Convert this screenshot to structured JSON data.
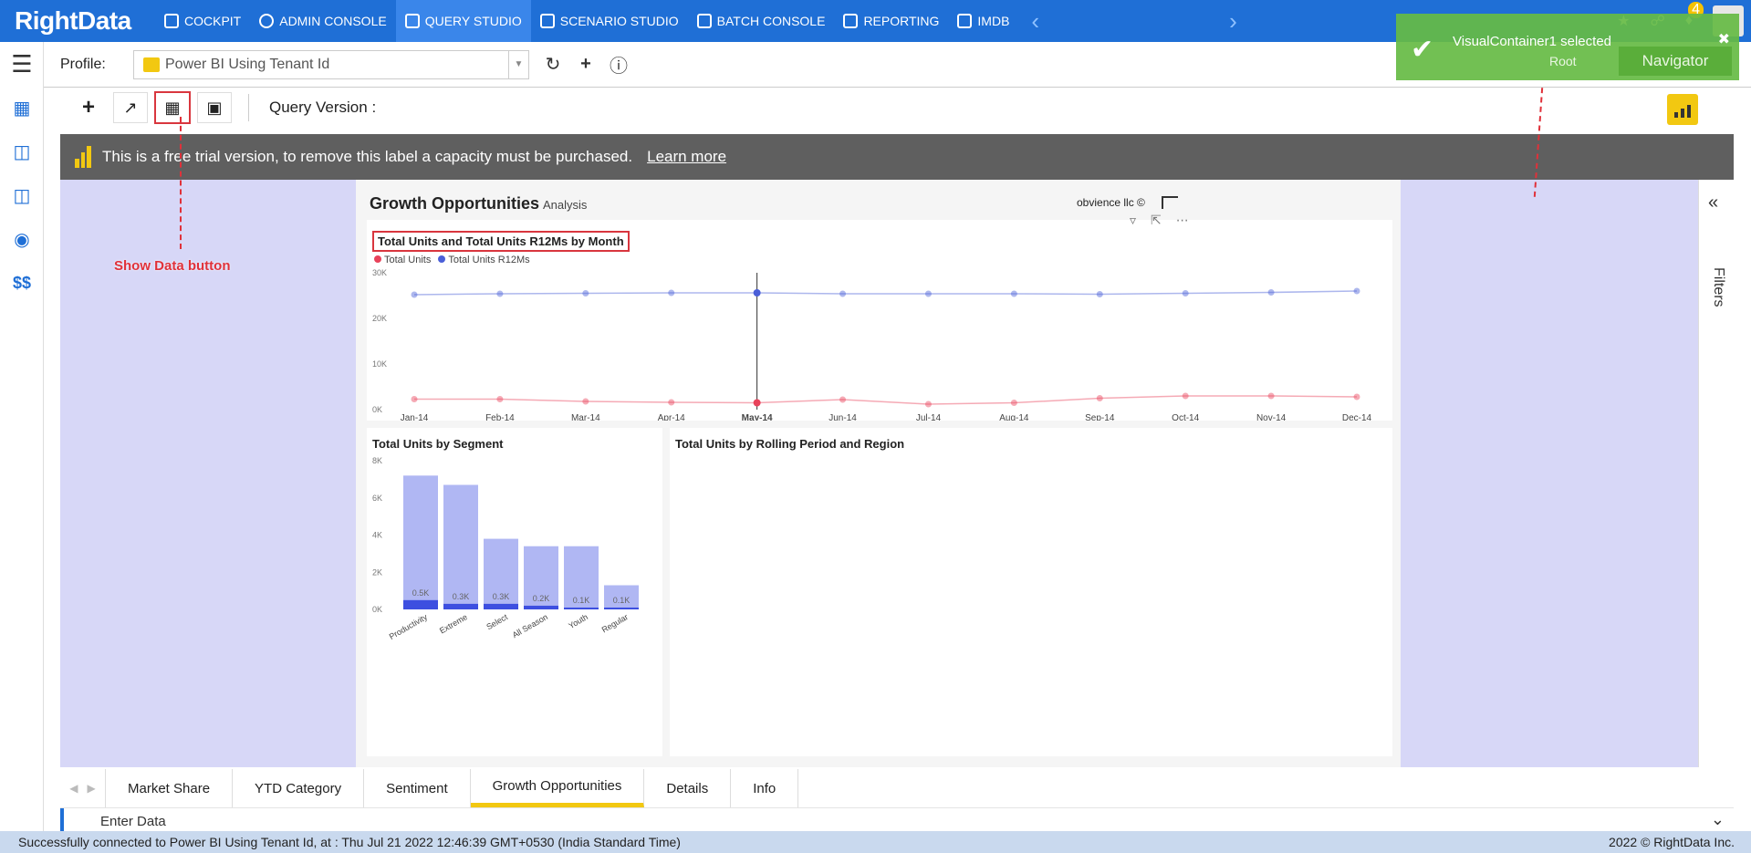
{
  "app": {
    "logo": "RightData"
  },
  "nav": {
    "items": [
      {
        "label": "COCKPIT",
        "active": false
      },
      {
        "label": "ADMIN CONSOLE",
        "active": false
      },
      {
        "label": "QUERY STUDIO",
        "active": true
      },
      {
        "label": "SCENARIO STUDIO",
        "active": false
      },
      {
        "label": "BATCH CONSOLE",
        "active": false
      },
      {
        "label": "REPORTING",
        "active": false
      },
      {
        "label": "IMDB",
        "active": false
      }
    ],
    "notification_count": "4"
  },
  "profile": {
    "label": "Profile:",
    "value": "Power BI Using Tenant Id"
  },
  "toolbar": {
    "query_version_label": "Query Version :"
  },
  "banner": {
    "text": "This is a free trial version, to remove this label a capacity must be purchased.",
    "link": "Learn more"
  },
  "report": {
    "title": "Growth Opportunities",
    "subtitle": "Analysis",
    "owner": "obvience llc ©",
    "filters_label": "Filters"
  },
  "annotation": {
    "label": "Show Data button"
  },
  "toast": {
    "message": "VisualContainer1 selected",
    "root": "Root",
    "navigator": "Navigator"
  },
  "tabs": [
    {
      "label": "Market Share",
      "active": false
    },
    {
      "label": "YTD Category",
      "active": false
    },
    {
      "label": "Sentiment",
      "active": false
    },
    {
      "label": "Growth Opportunities",
      "active": true
    },
    {
      "label": "Details",
      "active": false
    },
    {
      "label": "Info",
      "active": false
    }
  ],
  "enter_data": {
    "label": "Enter Data"
  },
  "status": {
    "message": "Successfully connected to Power BI Using Tenant Id, at : Thu Jul 21 2022 12:46:39 GMT+0530 (India Standard Time)",
    "copyright": "2022 © RightData Inc."
  },
  "chart_data": [
    {
      "type": "line",
      "title": "Total Units and Total Units R12Ms by Month",
      "categories": [
        "Jan-14",
        "Feb-14",
        "Mar-14",
        "Apr-14",
        "May-14",
        "Jun-14",
        "Jul-14",
        "Aug-14",
        "Sep-14",
        "Oct-14",
        "Nov-14",
        "Dec-14"
      ],
      "series": [
        {
          "name": "Total Units",
          "color": "#e8425a",
          "values": [
            2300,
            2300,
            1800,
            1600,
            1500,
            2200,
            1200,
            1500,
            2500,
            3000,
            3000,
            2800
          ]
        },
        {
          "name": "Total Units R12Ms",
          "color": "#4a5fd8",
          "values": [
            25200,
            25400,
            25500,
            25600,
            25600,
            25400,
            25400,
            25400,
            25300,
            25500,
            25700,
            26000
          ]
        }
      ],
      "yticks": [
        "0K",
        "10K",
        "20K",
        "30K"
      ],
      "ylim": [
        0,
        30000
      ],
      "highlight_category": "May-14",
      "legend": "top-left"
    },
    {
      "type": "bar",
      "title": "Total Units by Segment",
      "categories": [
        "Productivity",
        "Extreme",
        "Select",
        "All Season",
        "Youth",
        "Regular"
      ],
      "series": [
        {
          "name": "total",
          "color": "#b0b7f3",
          "values": [
            7200,
            6700,
            3800,
            3400,
            3400,
            1300
          ]
        },
        {
          "name": "selected",
          "color": "#3d4fe0",
          "values": [
            500,
            300,
            300,
            200,
            100,
            100
          ]
        }
      ],
      "data_labels": [
        "0.5K",
        "0.3K",
        "0.3K",
        "0.2K",
        "0.1K",
        "0.1K"
      ],
      "yticks": [
        "0K",
        "2K",
        "4K",
        "6K",
        "8K"
      ],
      "ylim": [
        0,
        8000
      ]
    },
    {
      "type": "table",
      "title": "Total Units by Rolling Period and Region"
    }
  ]
}
